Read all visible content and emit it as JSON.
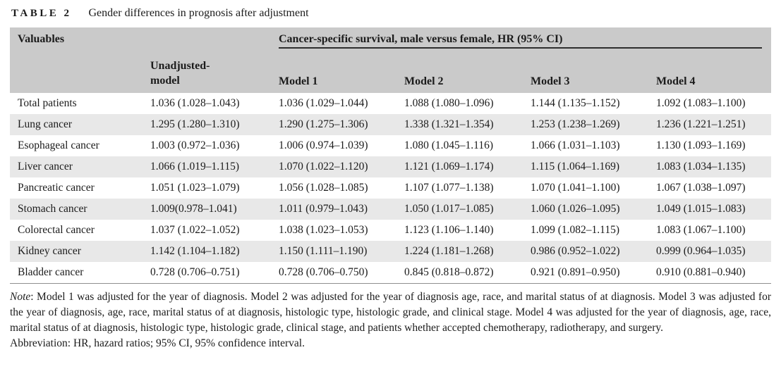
{
  "caption": {
    "tag": "TABLE 2",
    "title": "Gender differences in prognosis after adjustment"
  },
  "table": {
    "col0_header": "Valuables",
    "unadjusted_header": "Unadjusted-\nmodel",
    "span_header": "Cancer-specific survival, male versus female, HR (95% CI)",
    "model_headers": [
      "Model 1",
      "Model 2",
      "Model 3",
      "Model 4"
    ],
    "rows": [
      {
        "label": "Total patients",
        "values": [
          "1.036 (1.028–1.043)",
          "1.036 (1.029–1.044)",
          "1.088 (1.080–1.096)",
          "1.144 (1.135–1.152)",
          "1.092 (1.083–1.100)"
        ]
      },
      {
        "label": "Lung cancer",
        "values": [
          "1.295 (1.280–1.310)",
          "1.290 (1.275–1.306)",
          "1.338 (1.321–1.354)",
          "1.253 (1.238–1.269)",
          "1.236 (1.221–1.251)"
        ]
      },
      {
        "label": "Esophageal cancer",
        "values": [
          "1.003 (0.972–1.036)",
          "1.006 (0.974–1.039)",
          "1.080 (1.045–1.116)",
          "1.066 (1.031–1.103)",
          "1.130 (1.093–1.169)"
        ]
      },
      {
        "label": "Liver cancer",
        "values": [
          "1.066 (1.019–1.115)",
          "1.070 (1.022–1.120)",
          "1.121 (1.069–1.174)",
          "1.115 (1.064–1.169)",
          "1.083 (1.034–1.135)"
        ]
      },
      {
        "label": "Pancreatic cancer",
        "values": [
          "1.051 (1.023–1.079)",
          "1.056 (1.028–1.085)",
          "1.107 (1.077–1.138)",
          "1.070 (1.041–1.100)",
          "1.067 (1.038–1.097)"
        ]
      },
      {
        "label": "Stomach cancer",
        "values": [
          "1.009(0.978–1.041)",
          "1.011 (0.979–1.043)",
          "1.050 (1.017–1.085)",
          "1.060 (1.026–1.095)",
          "1.049 (1.015–1.083)"
        ]
      },
      {
        "label": "Colorectal cancer",
        "values": [
          "1.037 (1.022–1.052)",
          "1.038 (1.023–1.053)",
          "1.123 (1.106–1.140)",
          "1.099 (1.082–1.115)",
          "1.083 (1.067–1.100)"
        ]
      },
      {
        "label": "Kidney cancer",
        "values": [
          "1.142 (1.104–1.182)",
          "1.150 (1.111–1.190)",
          "1.224 (1.181–1.268)",
          "0.986 (0.952–1.022)",
          "0.999 (0.964–1.035)"
        ]
      },
      {
        "label": "Bladder cancer",
        "values": [
          "0.728 (0.706–0.751)",
          "0.728 (0.706–0.750)",
          "0.845 (0.818–0.872)",
          "0.921 (0.891–0.950)",
          "0.910 (0.881–0.940)"
        ]
      }
    ]
  },
  "notes": {
    "note_label": "Note",
    "note_text": ": Model 1 was adjusted for the year of diagnosis. Model 2 was adjusted for the year of diagnosis age, race, and marital status of at diagnosis. Model 3 was adjusted for the year of diagnosis, age, race, marital status of at diagnosis, histologic type, histologic grade, and clinical stage. Model 4 was adjusted for the year of diagnosis, age, race, marital status of at diagnosis, histologic type, histologic grade, clinical stage, and patients whether accepted chemotherapy, radiotherapy, and surgery.",
    "abbreviation_text": "Abbreviation: HR, hazard ratios; 95% CI, 95% confidence interval."
  },
  "colors": {
    "header_bg": "#cacaca",
    "row_alt_bg": "#e8e8e8",
    "row_bg": "#ffffff",
    "text": "#1b1b1b",
    "group_rule": "#2e2e2e",
    "bottom_rule": "#8f8f8f"
  }
}
